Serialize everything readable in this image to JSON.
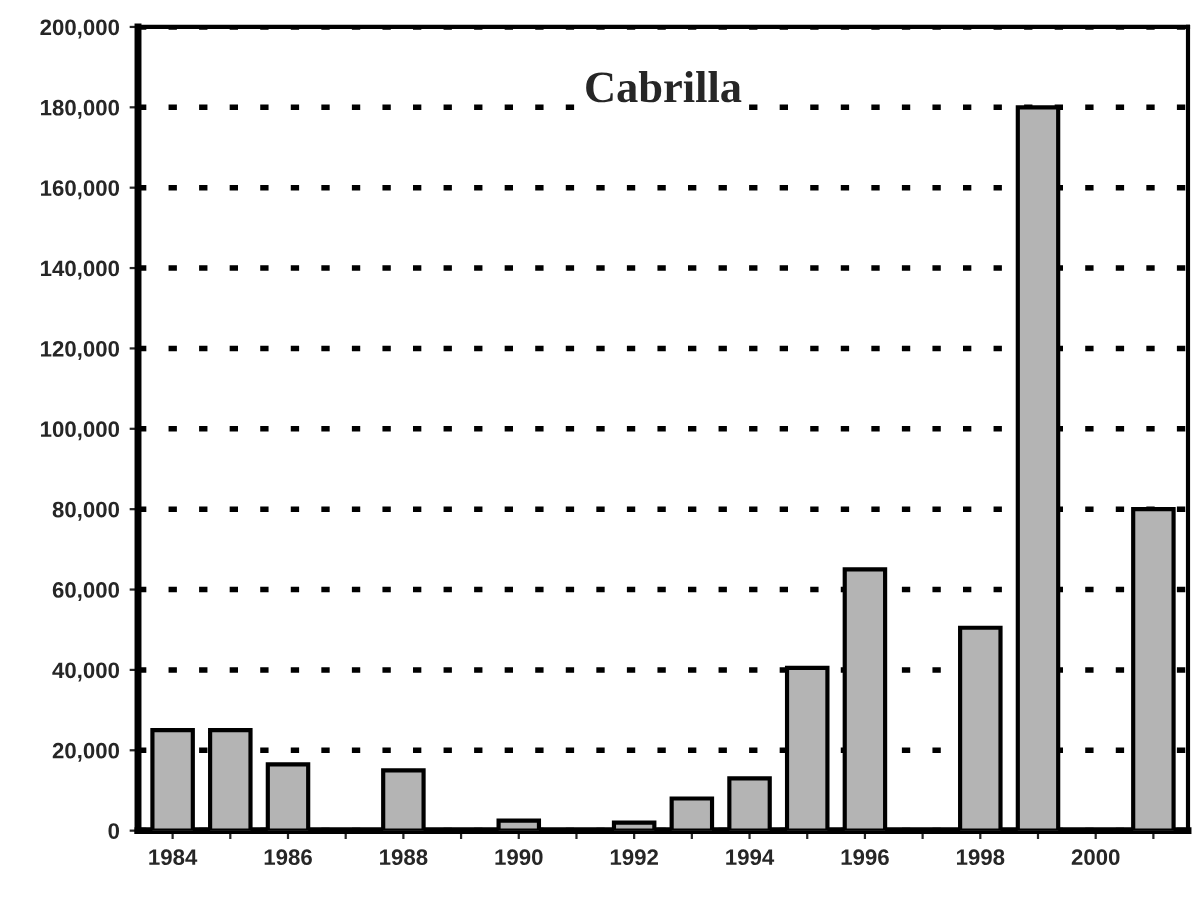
{
  "chart_data": {
    "type": "bar",
    "title": "Cabrilla",
    "categories": [
      "1984",
      null,
      "1986",
      null,
      "1988",
      null,
      "1990",
      null,
      "1992",
      null,
      "1994",
      null,
      "1996",
      null,
      "1998",
      null,
      "2000",
      null
    ],
    "values": [
      25000,
      25000,
      16500,
      null,
      15000,
      null,
      2500,
      null,
      2000,
      8000,
      13000,
      40500,
      65000,
      null,
      50500,
      180000,
      null,
      80000
    ],
    "color": "#b4b4b4",
    "ylim": [
      0,
      200000
    ],
    "yticks": [
      {
        "value": 0,
        "label": "0"
      },
      {
        "value": 20000,
        "label": "20,000"
      },
      {
        "value": 40000,
        "label": "40,000"
      },
      {
        "value": 60000,
        "label": "60,000"
      },
      {
        "value": 80000,
        "label": "80,000"
      },
      {
        "value": 100000,
        "label": "100,000"
      },
      {
        "value": 120000,
        "label": "120,000"
      },
      {
        "value": 140000,
        "label": "140,000"
      },
      {
        "value": 160000,
        "label": "160,000"
      },
      {
        "value": 180000,
        "label": "180,000"
      },
      {
        "value": 200000,
        "label": "200,000"
      }
    ],
    "grid": "y"
  }
}
